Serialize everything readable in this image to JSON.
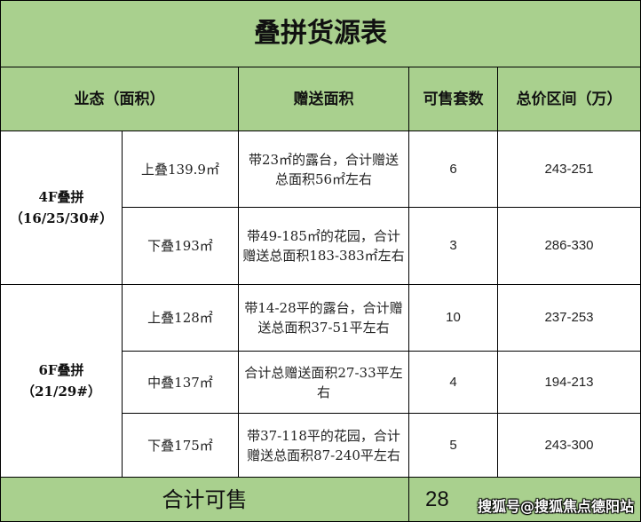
{
  "title": "叠拼货源表",
  "headers": [
    "业态（面积）",
    "赠送面积",
    "可售套数",
    "总价区间（万）"
  ],
  "groups": [
    {
      "type_line1": "4F叠拼",
      "type_line2": "（16/25/30#）",
      "rows": [
        {
          "unit": "上叠139.9㎡",
          "gift": "带23㎡的露台，合计赠送总面积56㎡左右",
          "count": "6",
          "price": "243-251"
        },
        {
          "unit": "下叠193㎡",
          "gift": "带49-185㎡的花园，合计赠送总面积183-383㎡左右",
          "count": "3",
          "price": "286-330"
        }
      ]
    },
    {
      "type_line1": "6F叠拼",
      "type_line2": "（21/29#）",
      "rows": [
        {
          "unit": "上叠128㎡",
          "gift": "带14-28平的露台，合计赠送总面积37-51平左右",
          "count": "10",
          "price": "237-253"
        },
        {
          "unit": "中叠137㎡",
          "gift": "合计总赠送面积27-33平左右",
          "count": "4",
          "price": "194-213"
        },
        {
          "unit": "下叠175㎡",
          "gift": "带37-118平的花园，合计赠送总面积87-240平左右",
          "count": "5",
          "price": "243-300"
        }
      ]
    }
  ],
  "footer": {
    "label": "合计可售",
    "total": "28"
  },
  "watermark": "搜狐号@搜狐焦点德阳站",
  "colors": {
    "header_bg": "#a9d08e",
    "border": "#000000"
  }
}
